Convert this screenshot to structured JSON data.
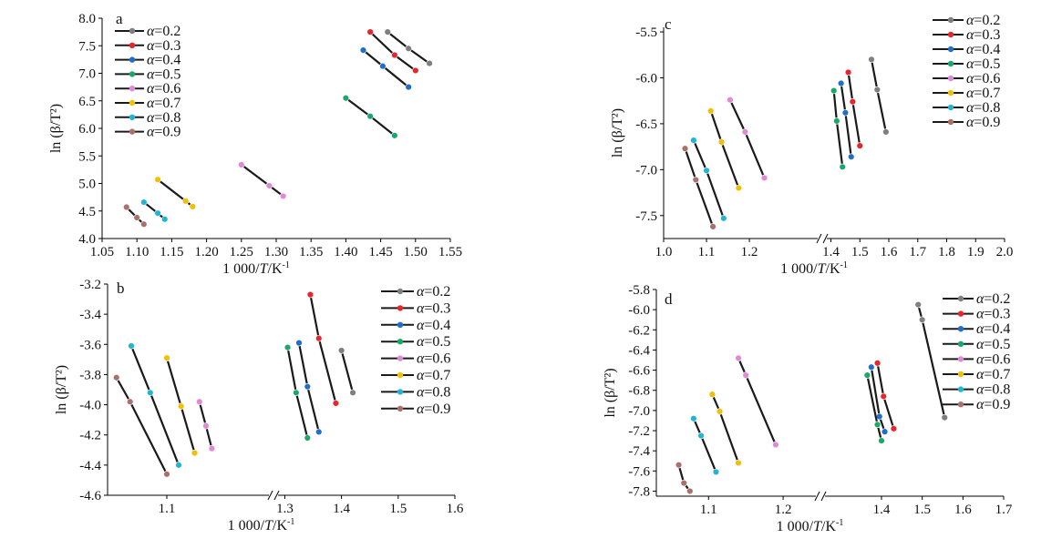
{
  "figure": {
    "colors": {
      "0.2": "#7f7f7f",
      "0.3": "#e8252b",
      "0.4": "#1f6fc8",
      "0.5": "#1aa86a",
      "0.6": "#e08ad6",
      "0.7": "#f2c000",
      "0.8": "#22b5d3",
      "0.9": "#a9716a",
      "line": "#1a1a1a",
      "axis": "#000000"
    }
  },
  "chart_data": [
    {
      "panel": "a",
      "type": "line",
      "xlabel": "1 000/T/K-1",
      "ylabel": "ln (β/T²)",
      "xlim": [
        1.05,
        1.55
      ],
      "ylim": [
        4.0,
        8.0
      ],
      "x_ticks": [
        1.05,
        1.1,
        1.15,
        1.2,
        1.25,
        1.3,
        1.35,
        1.4,
        1.45,
        1.5,
        1.55
      ],
      "x_tick_labels": [
        "1.05",
        "1.10",
        "1.15",
        "1.20",
        "1.25",
        "1.30",
        "1.35",
        "1.40",
        "1.45",
        "1.50",
        "1.55"
      ],
      "y_ticks": [
        4.0,
        4.5,
        5.0,
        5.5,
        6.0,
        6.5,
        7.0,
        7.5,
        8.0
      ],
      "y_tick_labels": [
        "4.0",
        "4.5",
        "5.0",
        "5.5",
        "6.0",
        "6.5",
        "7.0",
        "7.5",
        "8.0"
      ],
      "legend_position": "top-left",
      "series": [
        {
          "name": "α=0.2",
          "key": "0.2",
          "x": [
            1.46,
            1.49,
            1.52
          ],
          "y": [
            7.75,
            7.45,
            7.18
          ]
        },
        {
          "name": "α=0.3",
          "key": "0.3",
          "x": [
            1.435,
            1.47,
            1.5
          ],
          "y": [
            7.75,
            7.33,
            7.05
          ]
        },
        {
          "name": "α=0.4",
          "key": "0.4",
          "x": [
            1.425,
            1.453,
            1.49
          ],
          "y": [
            7.42,
            7.13,
            6.75
          ]
        },
        {
          "name": "α=0.5",
          "key": "0.5",
          "x": [
            1.4,
            1.435,
            1.47
          ],
          "y": [
            6.55,
            6.22,
            5.87
          ]
        },
        {
          "name": "α=0.6",
          "key": "0.6",
          "x": [
            1.25,
            1.29,
            1.31
          ],
          "y": [
            5.34,
            4.96,
            4.77
          ]
        },
        {
          "name": "α=0.7",
          "key": "0.7",
          "x": [
            1.13,
            1.17,
            1.18
          ],
          "y": [
            5.07,
            4.68,
            4.58
          ]
        },
        {
          "name": "α=0.8",
          "key": "0.8",
          "x": [
            1.11,
            1.13,
            1.14
          ],
          "y": [
            4.66,
            4.46,
            4.35
          ]
        },
        {
          "name": "α=0.9",
          "key": "0.9",
          "x": [
            1.085,
            1.1,
            1.11
          ],
          "y": [
            4.57,
            4.38,
            4.26
          ]
        }
      ]
    },
    {
      "panel": "b",
      "type": "line",
      "xlabel": "1 000/T/K-1",
      "ylabel": "ln (β/T²)",
      "axis_break": true,
      "xlim_left": [
        1.0,
        1.28
      ],
      "xlim_right": [
        1.28,
        1.6
      ],
      "ylim": [
        -4.6,
        -3.2
      ],
      "x_ticks": [
        1.1,
        1.3,
        1.4,
        1.5,
        1.6
      ],
      "x_tick_labels": [
        "1.1",
        "1.3",
        "1.4",
        "1.5",
        "1.6"
      ],
      "y_ticks": [
        -4.6,
        -4.4,
        -4.2,
        -4.0,
        -3.8,
        -3.6,
        -3.4,
        -3.2
      ],
      "y_tick_labels": [
        "-4.6",
        "-4.4",
        "-4.2",
        "-4.0",
        "-3.8",
        "-3.6",
        "-3.4",
        "-3.2"
      ],
      "legend_position": "top-right",
      "series": [
        {
          "name": "α=0.2",
          "key": "0.2",
          "x": [
            1.4,
            1.42
          ],
          "y": [
            -3.64,
            -3.92
          ]
        },
        {
          "name": "α=0.3",
          "key": "0.3",
          "x": [
            1.345,
            1.36,
            1.39
          ],
          "y": [
            -3.27,
            -3.56,
            -3.99
          ]
        },
        {
          "name": "α=0.4",
          "key": "0.4",
          "x": [
            1.325,
            1.34,
            1.36
          ],
          "y": [
            -3.59,
            -3.88,
            -4.18
          ]
        },
        {
          "name": "α=0.5",
          "key": "0.5",
          "x": [
            1.305,
            1.32,
            1.34
          ],
          "y": [
            -3.62,
            -3.92,
            -4.22
          ]
        },
        {
          "name": "α=0.6",
          "key": "0.6",
          "x": [
            1.155,
            1.166,
            1.176
          ],
          "y": [
            -3.98,
            -4.14,
            -4.29
          ]
        },
        {
          "name": "α=0.7",
          "key": "0.7",
          "x": [
            1.1,
            1.124,
            1.147
          ],
          "y": [
            -3.69,
            -4.01,
            -4.32
          ]
        },
        {
          "name": "α=0.8",
          "key": "0.8",
          "x": [
            1.04,
            1.072,
            1.12
          ],
          "y": [
            -3.61,
            -3.92,
            -4.4
          ]
        },
        {
          "name": "α=0.9",
          "key": "0.9",
          "x": [
            1.015,
            1.038,
            1.1
          ],
          "y": [
            -3.82,
            -3.98,
            -4.46
          ]
        }
      ]
    },
    {
      "panel": "c",
      "type": "line",
      "xlabel": "1 000/T/K-1",
      "ylabel": "ln (β/T²)",
      "axis_break": true,
      "xlim_left": [
        1.0,
        1.37
      ],
      "xlim_right": [
        1.37,
        2.0
      ],
      "ylim": [
        -7.75,
        -5.45
      ],
      "x_ticks": [
        1.0,
        1.1,
        1.2,
        1.4,
        1.5,
        1.6,
        1.7,
        1.8,
        1.9,
        2.0
      ],
      "x_tick_labels": [
        "1.0",
        "1.1",
        "1.2",
        "1.4",
        "1.5",
        "1.6",
        "1.7",
        "1.8",
        "1.9",
        "2.0"
      ],
      "y_ticks": [
        -7.5,
        -7.0,
        -6.5,
        -6.0,
        -5.5
      ],
      "y_tick_labels": [
        "-7.5",
        "-7.0",
        "-6.5",
        "-6.0",
        "-5.5"
      ],
      "legend_position": "top-right",
      "series": [
        {
          "name": "α=0.2",
          "key": "0.2",
          "x": [
            1.54,
            1.56,
            1.59
          ],
          "y": [
            -5.8,
            -6.13,
            -6.59
          ]
        },
        {
          "name": "α=0.3",
          "key": "0.3",
          "x": [
            1.46,
            1.475,
            1.5
          ],
          "y": [
            -5.94,
            -6.26,
            -6.74
          ]
        },
        {
          "name": "α=0.4",
          "key": "0.4",
          "x": [
            1.435,
            1.45,
            1.47
          ],
          "y": [
            -6.06,
            -6.38,
            -6.86
          ]
        },
        {
          "name": "α=0.5",
          "key": "0.5",
          "x": [
            1.41,
            1.42,
            1.44
          ],
          "y": [
            -6.14,
            -6.47,
            -6.97
          ]
        },
        {
          "name": "α=0.6",
          "key": "0.6",
          "x": [
            1.155,
            1.19,
            1.235
          ],
          "y": [
            -6.24,
            -6.59,
            -7.09
          ]
        },
        {
          "name": "α=0.7",
          "key": "0.7",
          "x": [
            1.11,
            1.135,
            1.175
          ],
          "y": [
            -6.36,
            -6.7,
            -7.2
          ]
        },
        {
          "name": "α=0.8",
          "key": "0.8",
          "x": [
            1.07,
            1.1,
            1.14
          ],
          "y": [
            -6.68,
            -7.01,
            -7.53
          ]
        },
        {
          "name": "α=0.9",
          "key": "0.9",
          "x": [
            1.05,
            1.075,
            1.115
          ],
          "y": [
            -6.77,
            -7.11,
            -7.62
          ]
        }
      ]
    },
    {
      "panel": "d",
      "type": "line",
      "xlabel": "1 000/T/K-1",
      "ylabel": "ln (β/T²)",
      "axis_break": true,
      "xlim_left": [
        1.03,
        1.25
      ],
      "xlim_right": [
        1.25,
        1.7
      ],
      "ylim": [
        -7.85,
        -5.8
      ],
      "x_ticks": [
        1.1,
        1.2,
        1.4,
        1.5,
        1.6,
        1.7
      ],
      "x_tick_labels": [
        "1.1",
        "1.2",
        "1.4",
        "1.5",
        "1.6",
        "1.7"
      ],
      "y_ticks": [
        -7.8,
        -7.6,
        -7.4,
        -7.2,
        -7.0,
        -6.8,
        -6.6,
        -6.4,
        -6.2,
        -6.0,
        -5.8
      ],
      "y_tick_labels": [
        "-7.8",
        "-7.6",
        "-7.4",
        "-7.2",
        "-7.0",
        "-6.8",
        "-6.6",
        "-6.4",
        "-6.2",
        "-6.0",
        "-5.8"
      ],
      "legend_position": "top-right",
      "series": [
        {
          "name": "α=0.2",
          "key": "0.2",
          "x": [
            1.49,
            1.5,
            1.555
          ],
          "y": [
            -5.95,
            -6.1,
            -7.07
          ]
        },
        {
          "name": "α=0.3",
          "key": "0.3",
          "x": [
            1.39,
            1.405,
            1.43
          ],
          "y": [
            -6.53,
            -6.86,
            -7.18
          ]
        },
        {
          "name": "α=0.4",
          "key": "0.4",
          "x": [
            1.375,
            1.395,
            1.408
          ],
          "y": [
            -6.57,
            -7.06,
            -7.21
          ]
        },
        {
          "name": "α=0.5",
          "key": "0.5",
          "x": [
            1.365,
            1.39,
            1.4
          ],
          "y": [
            -6.65,
            -7.14,
            -7.3
          ]
        },
        {
          "name": "α=0.6",
          "key": "0.6",
          "x": [
            1.14,
            1.15,
            1.19
          ],
          "y": [
            -6.48,
            -6.65,
            -7.34
          ]
        },
        {
          "name": "α=0.7",
          "key": "0.7",
          "x": [
            1.105,
            1.115,
            1.14
          ],
          "y": [
            -6.84,
            -7.01,
            -7.52
          ]
        },
        {
          "name": "α=0.8",
          "key": "0.8",
          "x": [
            1.08,
            1.09,
            1.11
          ],
          "y": [
            -7.08,
            -7.25,
            -7.61
          ]
        },
        {
          "name": "α=0.9",
          "key": "0.9",
          "x": [
            1.06,
            1.067,
            1.075
          ],
          "y": [
            -7.54,
            -7.72,
            -7.8
          ]
        }
      ]
    }
  ]
}
